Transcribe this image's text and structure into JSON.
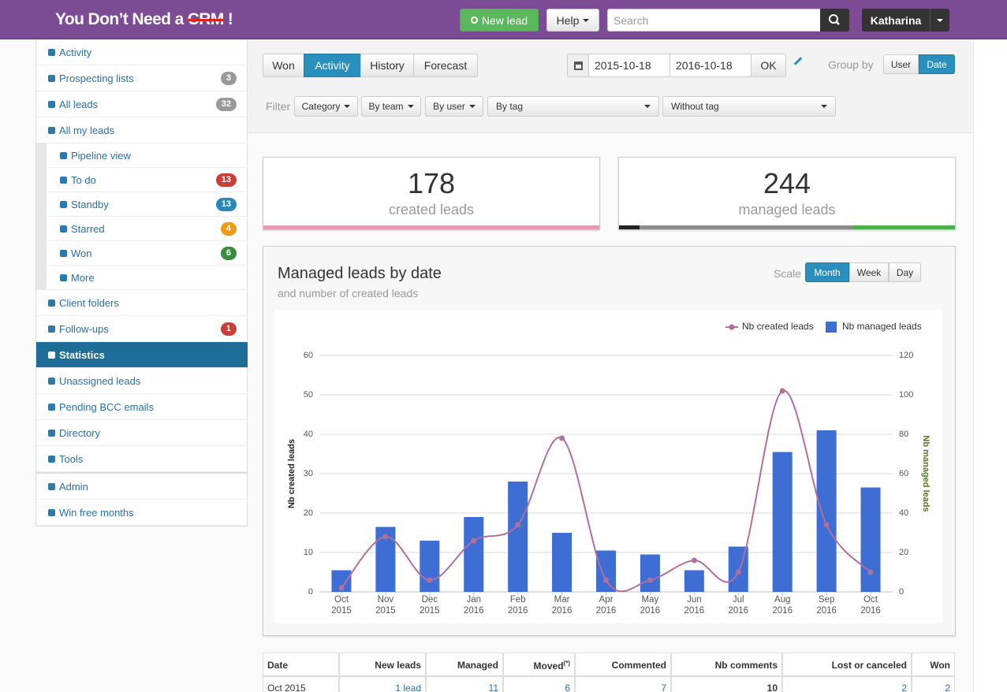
{
  "header": {
    "brand": "You Don’t Need a",
    "brand_struck": "CRM",
    "brand_end": "!",
    "new_lead": "New lead",
    "help": "Help",
    "search_placeholder": "Search",
    "user": "Katharina"
  },
  "sidebar": {
    "main": [
      {
        "label": "Activity"
      },
      {
        "label": "Prospecting lists",
        "badge": 3,
        "badge_color": "#999999"
      },
      {
        "label": "All leads",
        "badge": 32,
        "badge_color": "#999999"
      },
      {
        "label": "All my leads",
        "children": [
          {
            "label": "Pipeline view"
          },
          {
            "label": "To do",
            "badge": 13,
            "badge_color": "#c9403a"
          },
          {
            "label": "Standby",
            "badge": 13,
            "badge_color": "#2a88b8"
          },
          {
            "label": "Starred",
            "badge": 4,
            "badge_color": "#ef9a1a"
          },
          {
            "label": "Won",
            "badge": 6,
            "badge_color": "#3d8b3d"
          },
          {
            "label": "More"
          }
        ]
      },
      {
        "label": "Client folders"
      },
      {
        "label": "Follow-ups",
        "badge": 1,
        "badge_color": "#c9403a"
      },
      {
        "label": "Statistics",
        "active": true
      },
      {
        "label": "Unassigned leads"
      },
      {
        "label": "Pending BCC emails"
      },
      {
        "label": "Directory"
      },
      {
        "label": "Tools"
      }
    ],
    "footer": [
      {
        "label": "Admin"
      },
      {
        "label": "Win free months"
      }
    ]
  },
  "toolbar": {
    "tabs": [
      "Won",
      "Activity",
      "History",
      "Forecast"
    ],
    "active_tab": 1,
    "date_from": "2015-10-18",
    "date_to": "2016-10-18",
    "ok": "OK",
    "group_by": "Group by",
    "group_options": [
      "User",
      "Date"
    ],
    "active_group": 1,
    "filter": "Filter",
    "filters": [
      "Category",
      "By team",
      "By user",
      "By tag",
      "Without tag"
    ]
  },
  "kpis": [
    {
      "value": 178,
      "label": "created leads"
    },
    {
      "value": 244,
      "label": "managed leads"
    }
  ],
  "chart_data": {
    "type": "combo",
    "title": "Managed leads by date",
    "subtitle": "and number of created leads",
    "scale_label": "Scale",
    "scale_options": [
      "Month",
      "Week",
      "Day"
    ],
    "active_scale": 0,
    "categories": [
      "Oct 2015",
      "Nov 2015",
      "Dec 2015",
      "Jan 2016",
      "Feb 2016",
      "Mar 2016",
      "Apr 2016",
      "May 2016",
      "Jun 2016",
      "Jul 2016",
      "Aug 2016",
      "Sep 2016",
      "Oct 2016"
    ],
    "series": [
      {
        "name": "Nb created leads",
        "type": "line",
        "color": "#b0709e",
        "values": [
          1,
          14,
          3,
          13,
          17,
          39,
          3,
          3,
          8,
          5,
          51,
          17,
          5
        ]
      },
      {
        "name": "Nb managed leads",
        "type": "bar",
        "axis": "y2",
        "color": "#3e6dd3",
        "values": [
          11,
          33,
          26,
          38,
          56,
          30,
          21,
          19,
          11,
          23,
          71,
          82,
          53
        ]
      }
    ],
    "ylabel": "Nb created leads",
    "y2label": "Nb managed leads",
    "y2label_color": "#4d7d1f",
    "ylim": [
      0,
      60
    ],
    "yticks": [
      0,
      10,
      20,
      30,
      40,
      50,
      60
    ],
    "y2lim": [
      0,
      120
    ],
    "y2ticks": [
      0,
      20,
      40,
      60,
      80,
      100,
      120
    ],
    "grid": true,
    "legend": "top-right"
  },
  "table": {
    "columns": [
      "Date",
      "New leads",
      "Managed",
      "Moved",
      "Commented",
      "Nb comments",
      "Lost or canceled",
      "Won"
    ],
    "moved_note": "(*)",
    "rows": [
      [
        "Oct 2015",
        "1 lead",
        11,
        6,
        7,
        10,
        2,
        2
      ]
    ]
  }
}
